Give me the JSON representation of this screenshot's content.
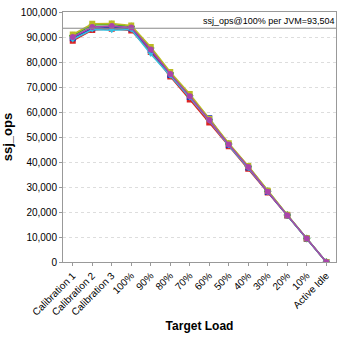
{
  "chart_data": {
    "type": "line",
    "x_label": "Target Load",
    "y_label": "ssj_ops",
    "categories": [
      "Calibration 1",
      "Calibration 2",
      "Calibration 3",
      "100%",
      "90%",
      "80%",
      "70%",
      "60%",
      "50%",
      "40%",
      "30%",
      "20%",
      "10%",
      "Active Idle"
    ],
    "series": [
      {
        "color": "#dd2222",
        "marker": "square",
        "values": [
          88500,
          92800,
          93300,
          92600,
          84000,
          74200,
          65000,
          55800,
          46300,
          37300,
          27800,
          18600,
          9300,
          0
        ]
      },
      {
        "color": "#2233bb",
        "marker": "square",
        "values": [
          89500,
          93500,
          93800,
          93400,
          84800,
          74800,
          66000,
          57500,
          46800,
          37800,
          28000,
          18700,
          9350,
          0
        ]
      },
      {
        "color": "#33aa33",
        "marker": "diamond",
        "values": [
          90500,
          94800,
          95000,
          94200,
          85600,
          75600,
          66500,
          57000,
          47200,
          38200,
          28300,
          18800,
          9400,
          0
        ]
      },
      {
        "color": "#bbbb22",
        "marker": "square",
        "values": [
          91000,
          95300,
          95400,
          94600,
          86000,
          76000,
          67200,
          57200,
          47500,
          38400,
          28500,
          18900,
          9450,
          0
        ]
      },
      {
        "color": "#33c0e0",
        "marker": "triangle-down",
        "values": [
          89000,
          93000,
          92700,
          93000,
          83200,
          74500,
          65800,
          56500,
          46600,
          37600,
          27900,
          18650,
          9320,
          0
        ]
      },
      {
        "color": "#aa44aa",
        "marker": "circle",
        "values": [
          90000,
          94000,
          94400,
          93800,
          85000,
          75200,
          66300,
          56800,
          47000,
          38000,
          28100,
          18750,
          9380,
          0
        ]
      }
    ],
    "annotations": [
      {
        "text": "ssj_ops@100% per JVM=93,504",
        "y": 93504
      }
    ],
    "ylim": [
      0,
      100000
    ],
    "yticks": [
      0,
      {
        "value": 10000,
        "label": "10,000"
      },
      {
        "value": 20000,
        "label": "20,000"
      },
      {
        "value": 30000,
        "label": "30,000"
      },
      {
        "value": 40000,
        "label": "40,000"
      },
      {
        "value": 50000,
        "label": "50,000"
      },
      {
        "value": 60000,
        "label": "60,000"
      },
      {
        "value": 70000,
        "label": "70,000"
      },
      {
        "value": 80000,
        "label": "80,000"
      },
      {
        "value": 90000,
        "label": "90,000"
      },
      {
        "value": 100000,
        "label": "100,000"
      }
    ],
    "grid": true
  }
}
